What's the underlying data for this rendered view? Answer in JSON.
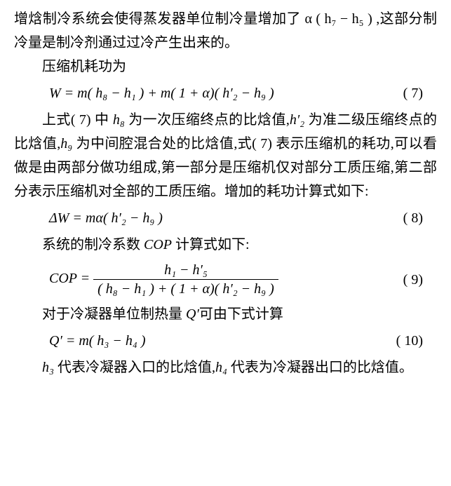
{
  "p1": "增焓制冷系统会使得蒸发器单位制冷量增加了 α ( h₇ − h₅ ) ,这部分制冷量是制冷剂通过过冷产生出来的。",
  "p2": "压缩机耗功为",
  "eq7": "W = m( h₈ − h₁ ) + m( 1 + α)( h′₂ − h₉ )",
  "eq7num": "( 7)",
  "p3a": "上式( 7) 中 ",
  "p3_h8": "h₈",
  "p3b": " 为一次压缩终点的比焓值,",
  "p3_h2p": "h′₂",
  "p3c": " 为准二级压缩终点的比焓值,",
  "p3_h9": "h₉",
  "p3d": " 为中间腔混合处的比焓值,式( 7) 表示压缩机的耗功,可以看做是由两部分做功组成,第一部分是压缩机仅对部分工质压缩,第二部分表示压缩机对全部的工质压缩。增加的耗功计算式如下:",
  "eq8": "ΔW = mα( h′₂ − h₉ )",
  "eq8num": "( 8)",
  "p4a": "系统的制冷系数 ",
  "p4_cop": "COP",
  "p4b": " 计算式如下:",
  "eq9_lhs": "COP = ",
  "eq9_num": "h₁ − h′₅",
  "eq9_den": "( h₈ − h₁ ) + ( 1 + α)( h′₂ − h₉ )",
  "eq9num": "( 9)",
  "p5a": "对于冷凝器单位制热量 ",
  "p5_qp": "Q′",
  "p5b": "可由下式计算",
  "eq10": "Q′ = m( h₃ − h₄ )",
  "eq10num": "( 10)",
  "p6_h3": "h₃",
  "p6a": " 代表冷凝器入口的比焓值,",
  "p6_h4": "h₄",
  "p6b": " 代表为冷凝器出口的比焓值。"
}
